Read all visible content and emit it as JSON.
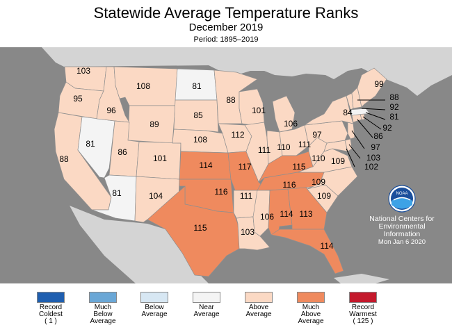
{
  "header": {
    "title": "Statewide Average Temperature Ranks",
    "subtitle": "December 2019",
    "period": "Period: 1895–2019"
  },
  "colors": {
    "record_coldest": "#1f5fb0",
    "much_below": "#6aa7d6",
    "below": "#d7e7f3",
    "near": "#f4f4f4",
    "above": "#fbd9c4",
    "much_above": "#ef8a5e",
    "record_warmest": "#c4192c",
    "ocean": "#888888",
    "foreign_land": "#d4d4d4"
  },
  "map": {
    "states": [
      {
        "id": "WA",
        "rank": "103",
        "category": "above"
      },
      {
        "id": "OR",
        "rank": "95",
        "category": "above"
      },
      {
        "id": "CA",
        "rank": "88",
        "category": "above"
      },
      {
        "id": "NV",
        "rank": "81",
        "category": "near"
      },
      {
        "id": "ID",
        "rank": "96",
        "category": "above"
      },
      {
        "id": "MT",
        "rank": "108",
        "category": "above"
      },
      {
        "id": "WY",
        "rank": "89",
        "category": "above"
      },
      {
        "id": "UT",
        "rank": "86",
        "category": "above"
      },
      {
        "id": "AZ",
        "rank": "81",
        "category": "near"
      },
      {
        "id": "CO",
        "rank": "101",
        "category": "above"
      },
      {
        "id": "NM",
        "rank": "104",
        "category": "above"
      },
      {
        "id": "ND",
        "rank": "81",
        "category": "near"
      },
      {
        "id": "SD",
        "rank": "85",
        "category": "above"
      },
      {
        "id": "NE",
        "rank": "108",
        "category": "above"
      },
      {
        "id": "KS",
        "rank": "114",
        "category": "much_above"
      },
      {
        "id": "OK",
        "rank": "116",
        "category": "much_above"
      },
      {
        "id": "TX",
        "rank": "115",
        "category": "much_above"
      },
      {
        "id": "MN",
        "rank": "88",
        "category": "above"
      },
      {
        "id": "IA",
        "rank": "112",
        "category": "above"
      },
      {
        "id": "MO",
        "rank": "117",
        "category": "much_above"
      },
      {
        "id": "AR",
        "rank": "111",
        "category": "above"
      },
      {
        "id": "LA",
        "rank": "103",
        "category": "above"
      },
      {
        "id": "WI",
        "rank": "101",
        "category": "above"
      },
      {
        "id": "IL",
        "rank": "111",
        "category": "above"
      },
      {
        "id": "MI",
        "rank": "106",
        "category": "above"
      },
      {
        "id": "IN",
        "rank": "110",
        "category": "above"
      },
      {
        "id": "OH",
        "rank": "111",
        "category": "above"
      },
      {
        "id": "KY",
        "rank": "115",
        "category": "much_above"
      },
      {
        "id": "TN",
        "rank": "116",
        "category": "much_above"
      },
      {
        "id": "MS",
        "rank": "106",
        "category": "above"
      },
      {
        "id": "AL",
        "rank": "114",
        "category": "much_above"
      },
      {
        "id": "GA",
        "rank": "113",
        "category": "much_above"
      },
      {
        "id": "FL",
        "rank": "114",
        "category": "much_above"
      },
      {
        "id": "SC",
        "rank": "109",
        "category": "above"
      },
      {
        "id": "NC",
        "rank": "109",
        "category": "above"
      },
      {
        "id": "VA",
        "rank": "109",
        "category": "above"
      },
      {
        "id": "WV",
        "rank": "110",
        "category": "above"
      },
      {
        "id": "PA",
        "rank": "97",
        "category": "above"
      },
      {
        "id": "NY",
        "rank": "84",
        "category": "above"
      },
      {
        "id": "ME",
        "rank": "99",
        "category": "above"
      },
      {
        "id": "VT",
        "rank": "88",
        "category": "above"
      },
      {
        "id": "NH",
        "rank": "92",
        "category": "above"
      },
      {
        "id": "MA",
        "rank": "81",
        "category": "near"
      },
      {
        "id": "RI",
        "rank": "92",
        "category": "above"
      },
      {
        "id": "CT",
        "rank": "86",
        "category": "above"
      },
      {
        "id": "NJ",
        "rank": "97",
        "category": "above"
      },
      {
        "id": "DE",
        "rank": "103",
        "category": "above"
      },
      {
        "id": "MD",
        "rank": "102",
        "category": "above"
      }
    ]
  },
  "ncei": {
    "logo_text": "NOAA",
    "line1": "National Centers for",
    "line2": "Environmental",
    "line3": "Information",
    "date": "Mon Jan  6 2020"
  },
  "legend": [
    {
      "key": "record_coldest",
      "lines": [
        "Record",
        "Coldest",
        "( 1 )"
      ]
    },
    {
      "key": "much_below",
      "lines": [
        "Much",
        "Below",
        "Average"
      ]
    },
    {
      "key": "below",
      "lines": [
        "Below",
        "Average"
      ]
    },
    {
      "key": "near",
      "lines": [
        "Near",
        "Average"
      ]
    },
    {
      "key": "above",
      "lines": [
        "Above",
        "Average"
      ]
    },
    {
      "key": "much_above",
      "lines": [
        "Much",
        "Above",
        "Average"
      ]
    },
    {
      "key": "record_warmest",
      "lines": [
        "Record",
        "Warmest",
        "( 125 )"
      ]
    }
  ]
}
